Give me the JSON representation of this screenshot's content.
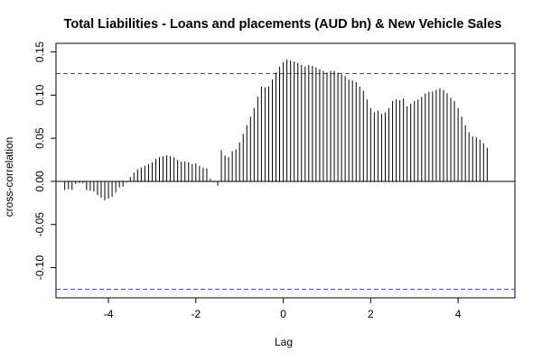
{
  "chart_data": {
    "type": "bar",
    "title": "Total Liabilities - Loans and placements (AUD bn) & New Vehicle Sales",
    "xlabel": "Lag",
    "ylabel": "cross-correlation",
    "xlim": [
      -5.2,
      5.3
    ],
    "ylim": [
      -0.135,
      0.16
    ],
    "x_ticks": [
      -4,
      -2,
      0,
      2,
      4
    ],
    "x_tick_labels": [
      "-4",
      "-2",
      "0",
      "2",
      "4"
    ],
    "y_ticks": [
      -0.1,
      -0.05,
      0.0,
      0.05,
      0.1,
      0.15
    ],
    "y_tick_labels": [
      "-0.10",
      "-0.05",
      "0.00",
      "0.05",
      "0.10",
      "0.15"
    ],
    "confidence_bounds": [
      0.125,
      -0.125
    ],
    "grid": false,
    "lag_start": -5.0,
    "lag_step": 0.0833333,
    "values": [
      -0.01,
      -0.009,
      -0.01,
      -0.003,
      -0.002,
      -0.002,
      -0.01,
      -0.011,
      -0.012,
      -0.016,
      -0.019,
      -0.022,
      -0.02,
      -0.018,
      -0.013,
      -0.007,
      -0.006,
      -0.001,
      0.005,
      0.01,
      0.014,
      0.016,
      0.018,
      0.02,
      0.022,
      0.026,
      0.028,
      0.029,
      0.03,
      0.029,
      0.028,
      0.025,
      0.023,
      0.023,
      0.022,
      0.02,
      0.021,
      0.018,
      0.016,
      0.015,
      0.003,
      -0.001,
      -0.005,
      0.036,
      0.03,
      0.028,
      0.035,
      0.037,
      0.045,
      0.055,
      0.065,
      0.075,
      0.085,
      0.098,
      0.11,
      0.109,
      0.11,
      0.118,
      0.126,
      0.133,
      0.138,
      0.141,
      0.14,
      0.139,
      0.137,
      0.135,
      0.133,
      0.135,
      0.134,
      0.132,
      0.13,
      0.128,
      0.126,
      0.128,
      0.128,
      0.126,
      0.124,
      0.122,
      0.118,
      0.117,
      0.115,
      0.11,
      0.105,
      0.095,
      0.085,
      0.08,
      0.082,
      0.078,
      0.08,
      0.085,
      0.093,
      0.095,
      0.094,
      0.096,
      0.087,
      0.09,
      0.093,
      0.095,
      0.098,
      0.102,
      0.104,
      0.104,
      0.106,
      0.108,
      0.106,
      0.102,
      0.097,
      0.093,
      0.085,
      0.075,
      0.065,
      0.057,
      0.052,
      0.051,
      0.048,
      0.044,
      0.039
    ],
    "colors": {
      "bars": "#000000",
      "bounds": "#4a4acc",
      "axes": "#000000",
      "zero_line": "#000000"
    }
  }
}
